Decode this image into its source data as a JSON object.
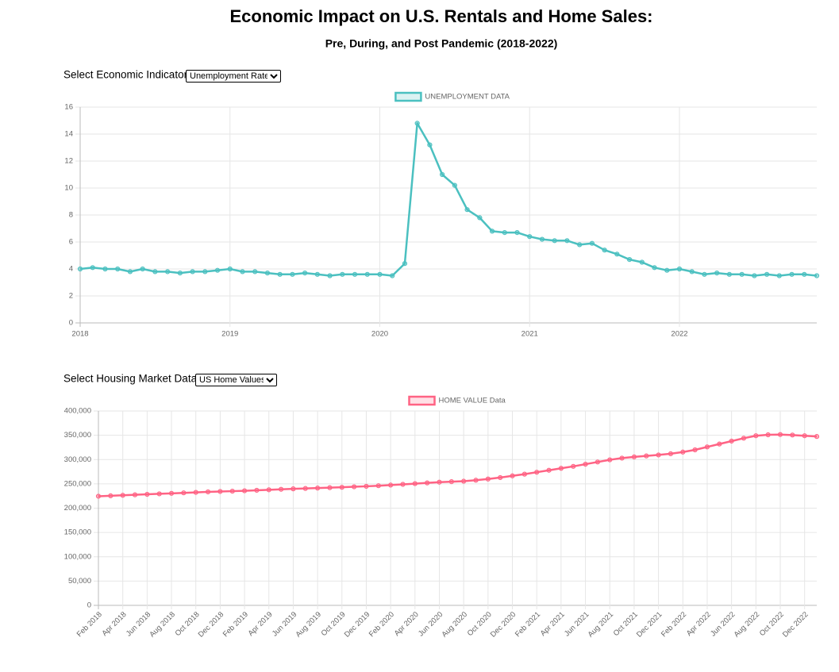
{
  "title": "Economic Impact on U.S. Rentals and Home Sales:",
  "subtitle": "Pre, During, and Post Pandemic (2018-2022)",
  "controls": [
    {
      "label": "Select Economic Indicator:",
      "selected": "Unemployment Rate"
    },
    {
      "label": "Select Housing Market Data:",
      "selected": "US Home Values"
    }
  ],
  "chart_data": [
    {
      "type": "line",
      "categories": [
        "2018",
        null,
        null,
        null,
        null,
        null,
        null,
        null,
        null,
        null,
        null,
        null,
        "2019",
        null,
        null,
        null,
        null,
        null,
        null,
        null,
        null,
        null,
        null,
        null,
        "2020",
        null,
        null,
        null,
        null,
        null,
        null,
        null,
        null,
        null,
        null,
        null,
        "2021",
        null,
        null,
        null,
        null,
        null,
        null,
        null,
        null,
        null,
        null,
        null,
        "2022",
        null,
        null,
        null,
        null,
        null,
        null,
        null,
        null,
        null,
        null,
        null
      ],
      "series": [
        {
          "name": "UNEMPLOYMENT DATA",
          "color": "#4bc0c0",
          "values": [
            4.0,
            4.1,
            4.0,
            4.0,
            3.8,
            4.0,
            3.8,
            3.8,
            3.7,
            3.8,
            3.8,
            3.9,
            4.0,
            3.8,
            3.8,
            3.7,
            3.6,
            3.6,
            3.7,
            3.6,
            3.5,
            3.6,
            3.6,
            3.6,
            3.6,
            3.5,
            4.4,
            14.8,
            13.2,
            11.0,
            10.2,
            8.4,
            7.8,
            6.8,
            6.7,
            6.7,
            6.4,
            6.2,
            6.1,
            6.1,
            5.8,
            5.9,
            5.4,
            5.1,
            4.7,
            4.5,
            4.1,
            3.9,
            4.0,
            3.8,
            3.6,
            3.7,
            3.6,
            3.6,
            3.5,
            3.6,
            3.5,
            3.6,
            3.6,
            3.5
          ]
        }
      ],
      "ylim": [
        0,
        16
      ],
      "yticks": [
        0,
        2,
        4,
        6,
        8,
        10,
        12,
        14,
        16
      ],
      "grid": true
    },
    {
      "type": "line",
      "categories": [
        "Feb 2018",
        null,
        "Apr 2018",
        null,
        "Jun 2018",
        null,
        "Aug 2018",
        null,
        "Oct 2018",
        null,
        "Dec 2018",
        null,
        "Feb 2019",
        null,
        "Apr 2019",
        null,
        "Jun 2019",
        null,
        "Aug 2019",
        null,
        "Oct 2019",
        null,
        "Dec 2019",
        null,
        "Feb 2020",
        null,
        "Apr 2020",
        null,
        "Jun 2020",
        null,
        "Aug 2020",
        null,
        "Oct 2020",
        null,
        "Dec 2020",
        null,
        "Feb 2021",
        null,
        "Apr 2021",
        null,
        "Jun 2021",
        null,
        "Aug 2021",
        null,
        "Oct 2021",
        null,
        "Dec 2021",
        null,
        "Feb 2022",
        null,
        "Apr 2022",
        null,
        "Jun 2022",
        null,
        "Aug 2022",
        null,
        "Oct 2022",
        null,
        "Dec 2022",
        null
      ],
      "series": [
        {
          "name": "HOME VALUE Data",
          "color": "#ff6384",
          "values": [
            224500,
            225500,
            226500,
            227500,
            228500,
            229500,
            230500,
            231500,
            232500,
            233500,
            234300,
            235000,
            235800,
            236800,
            237800,
            238800,
            239800,
            240600,
            241400,
            242200,
            243000,
            244000,
            245000,
            246200,
            247500,
            249000,
            250500,
            252000,
            253500,
            254500,
            255500,
            257500,
            260000,
            263000,
            266500,
            270000,
            274000,
            278000,
            282000,
            286000,
            290500,
            295000,
            299500,
            303000,
            305500,
            307500,
            309500,
            312000,
            315500,
            320000,
            326000,
            332000,
            338000,
            344000,
            349000,
            351000,
            351500,
            350500,
            349000,
            347500
          ]
        }
      ],
      "ylim": [
        0,
        400000
      ],
      "yticks": [
        0,
        {
          "value": 50000,
          "label": "50,000"
        },
        {
          "value": 100000,
          "label": "100,000"
        },
        {
          "value": 150000,
          "label": "150,000"
        },
        {
          "value": 200000,
          "label": "200,000"
        },
        {
          "value": 250000,
          "label": "250,000"
        },
        {
          "value": 300000,
          "label": "300,000"
        },
        {
          "value": 350000,
          "label": "350,000"
        },
        {
          "value": 400000,
          "label": "400,000"
        }
      ],
      "grid": true
    }
  ]
}
